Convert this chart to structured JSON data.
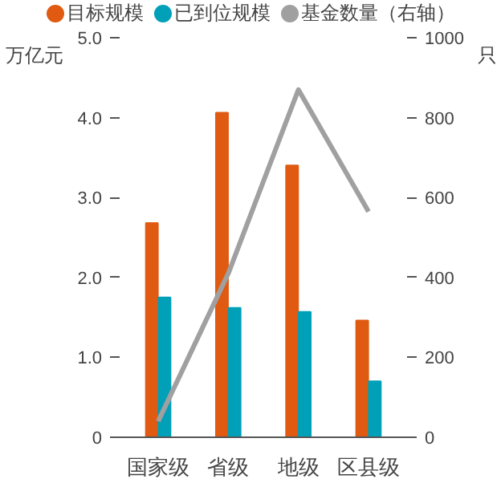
{
  "chart_data": {
    "type": "bar",
    "categories": [
      "国家级",
      "省级",
      "地级",
      "区县级"
    ],
    "series": [
      {
        "name": "目标规模",
        "color": "#e05a12",
        "values": [
          2.68,
          4.06,
          3.4,
          1.46
        ]
      },
      {
        "name": "已到位规模",
        "color": "#00a0b8",
        "values": [
          1.75,
          1.62,
          1.57,
          0.7
        ]
      },
      {
        "name": "基金数量（右轴）",
        "color": "#a0a0a0",
        "type": "line",
        "axis": "y2",
        "values": [
          40,
          410,
          870,
          565
        ]
      }
    ],
    "ylabel": "万亿元",
    "y2label": "只",
    "ylim": [
      0,
      5
    ],
    "yticks": [
      0,
      {
        "value": 1,
        "label": "1.0"
      },
      {
        "value": 2,
        "label": "2.0"
      },
      {
        "value": 3,
        "label": "3.0"
      },
      {
        "value": 4,
        "label": "4.0"
      },
      {
        "value": 5,
        "label": "5.0"
      }
    ],
    "y2lim": [
      0,
      1000
    ],
    "y2ticks": [
      0,
      200,
      400,
      600,
      800,
      1000
    ],
    "legend": "top",
    "grid": false
  }
}
